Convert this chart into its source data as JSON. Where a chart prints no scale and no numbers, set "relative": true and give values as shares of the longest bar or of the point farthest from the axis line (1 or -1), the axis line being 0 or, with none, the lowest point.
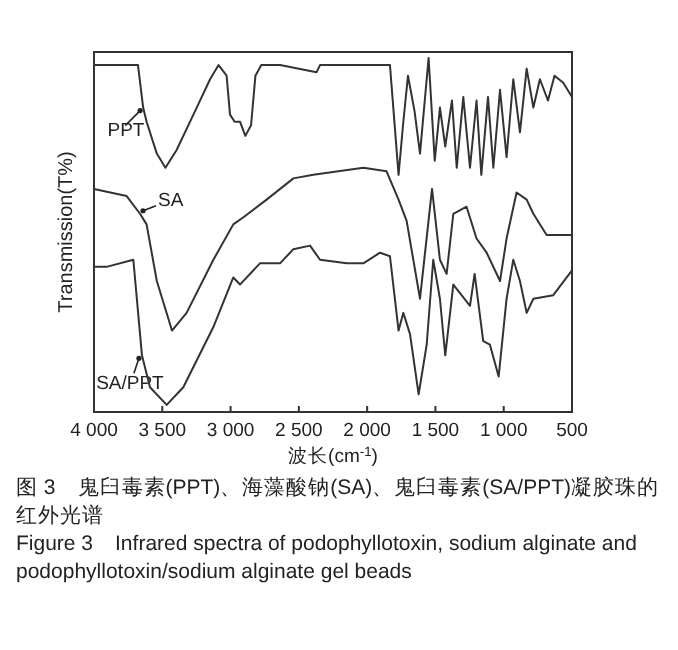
{
  "chart_data": {
    "type": "line",
    "relative": true,
    "xlabel": "波长(cm$^{-1}$)",
    "ylabel": "Transmission(T%)",
    "xlim": [
      4000,
      500
    ],
    "xticks": [
      {
        "value": 4000,
        "label": "4 000"
      },
      {
        "value": 3500,
        "label": "3 500"
      },
      {
        "value": 3000,
        "label": "3 000"
      },
      {
        "value": 2500,
        "label": "2 500"
      },
      {
        "value": 2000,
        "label": "2 000"
      },
      {
        "value": 1500,
        "label": "1 500"
      },
      {
        "value": 1000,
        "label": "1 000"
      },
      500
    ],
    "series": [
      {
        "name": "PPT",
        "color": "#333333",
        "x": [
          4000,
          3712,
          3678,
          3640,
          3615,
          3540,
          3477,
          3395,
          3272,
          3150,
          3088,
          3029,
          3004,
          2970,
          2931,
          2892,
          2850,
          2818,
          2775,
          2638,
          2370,
          2345,
          1906,
          1833,
          1770,
          1735,
          1701,
          1653,
          1613,
          1550,
          1505,
          1467,
          1428,
          1379,
          1344,
          1296,
          1247,
          1199,
          1164,
          1115,
          1076,
          1027,
          979,
          930,
          881,
          832,
          783,
          735,
          676,
          628,
          564,
          500
        ],
        "values": [
          0.98,
          0.98,
          0.98,
          0.86,
          0.82,
          0.73,
          0.69,
          0.74,
          0.84,
          0.94,
          0.98,
          0.95,
          0.84,
          0.82,
          0.82,
          0.78,
          0.81,
          0.95,
          0.98,
          0.98,
          0.96,
          0.98,
          0.98,
          0.98,
          0.67,
          0.82,
          0.95,
          0.85,
          0.73,
          1.0,
          0.71,
          0.86,
          0.75,
          0.88,
          0.69,
          0.89,
          0.69,
          0.88,
          0.67,
          0.89,
          0.69,
          0.91,
          0.72,
          0.94,
          0.79,
          0.97,
          0.86,
          0.94,
          0.88,
          0.95,
          0.93,
          0.89
        ]
      },
      {
        "name": "SA",
        "color": "#333333",
        "x": [
          4000,
          3761,
          3663,
          3615,
          3540,
          3429,
          3322,
          3126,
          2980,
          2906,
          2736,
          2540,
          2394,
          2028,
          1858,
          1770,
          1711,
          1613,
          1525,
          1467,
          1418,
          1369,
          1272,
          1199,
          1125,
          1027,
          979,
          906,
          832,
          783,
          686,
          500
        ],
        "values": [
          0.63,
          0.61,
          0.56,
          0.53,
          0.37,
          0.23,
          0.28,
          0.43,
          0.53,
          0.55,
          0.6,
          0.66,
          0.67,
          0.69,
          0.68,
          0.6,
          0.54,
          0.32,
          0.63,
          0.43,
          0.39,
          0.56,
          0.58,
          0.49,
          0.45,
          0.37,
          0.49,
          0.62,
          0.6,
          0.56,
          0.5,
          0.5
        ]
      },
      {
        "name": "SA/PPT",
        "color": "#333333",
        "x": [
          4000,
          3908,
          3712,
          3649,
          3590,
          3468,
          3346,
          3126,
          2980,
          2931,
          2785,
          2638,
          2540,
          2418,
          2345,
          2150,
          2028,
          1906,
          1833,
          1770,
          1735,
          1686,
          1623,
          1564,
          1516,
          1467,
          1428,
          1369,
          1247,
          1213,
          1150,
          1101,
          1037,
          979,
          930,
          881,
          832,
          783,
          637,
          500
        ],
        "values": [
          0.41,
          0.41,
          0.43,
          0.16,
          0.07,
          0.02,
          0.07,
          0.24,
          0.38,
          0.36,
          0.42,
          0.42,
          0.46,
          0.47,
          0.43,
          0.42,
          0.42,
          0.45,
          0.44,
          0.23,
          0.28,
          0.22,
          0.05,
          0.19,
          0.43,
          0.32,
          0.16,
          0.36,
          0.3,
          0.39,
          0.2,
          0.19,
          0.1,
          0.32,
          0.43,
          0.37,
          0.28,
          0.32,
          0.33,
          0.4
        ]
      }
    ],
    "annotations": [
      "图 3　鬼臼毒素(PPT)、海藻酸钠(SA)、鬼臼毒素(SA/PPT)凝胶珠的红外光谱",
      "Figure 3　Infrared spectra of podophyllotoxin, sodium alginate and podophyllotoxin/sodium alginate gel beads"
    ]
  }
}
